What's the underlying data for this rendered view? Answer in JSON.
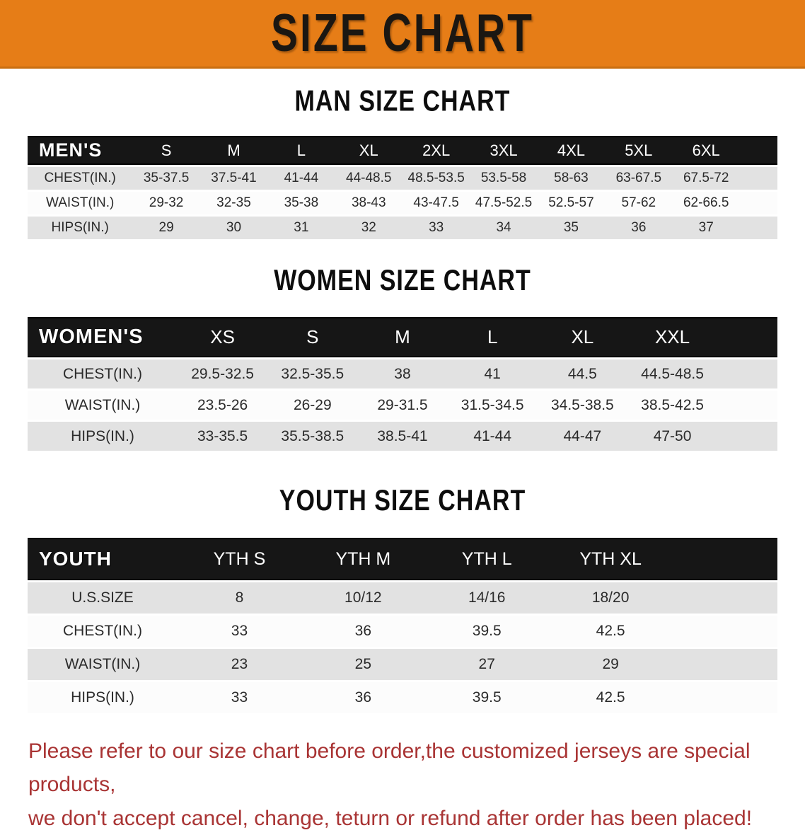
{
  "banner": {
    "title": "SIZE CHART"
  },
  "colors": {
    "banner_bg": "#E67D17",
    "banner_edge": "#C96E10",
    "table_header_bg": "#161616",
    "row_stripe": "#E2E2E2",
    "note_red": "#A93434"
  },
  "chart_data": [
    {
      "type": "table",
      "title": "MAN SIZE CHART",
      "header_label": "MEN'S",
      "columns": [
        "S",
        "M",
        "L",
        "XL",
        "2XL",
        "3XL",
        "4XL",
        "5XL",
        "6XL"
      ],
      "rows": [
        {
          "label": "CHEST(IN.)",
          "values": [
            "35-37.5",
            "37.5-41",
            "41-44",
            "44-48.5",
            "48.5-53.5",
            "53.5-58",
            "58-63",
            "63-67.5",
            "67.5-72"
          ]
        },
        {
          "label": "WAIST(IN.)",
          "values": [
            "29-32",
            "32-35",
            "35-38",
            "38-43",
            "43-47.5",
            "47.5-52.5",
            "52.5-57",
            "57-62",
            "62-66.5"
          ]
        },
        {
          "label": "HIPS(IN.)",
          "values": [
            "29",
            "30",
            "31",
            "32",
            "33",
            "34",
            "35",
            "36",
            "37"
          ]
        }
      ]
    },
    {
      "type": "table",
      "title": "WOMEN SIZE CHART",
      "header_label": "WOMEN'S",
      "columns": [
        "XS",
        "S",
        "M",
        "L",
        "XL",
        "XXL"
      ],
      "rows": [
        {
          "label": "CHEST(IN.)",
          "values": [
            "29.5-32.5",
            "32.5-35.5",
            "38",
            "41",
            "44.5",
            "44.5-48.5"
          ]
        },
        {
          "label": "WAIST(IN.)",
          "values": [
            "23.5-26",
            "26-29",
            "29-31.5",
            "31.5-34.5",
            "34.5-38.5",
            "38.5-42.5"
          ]
        },
        {
          "label": "HIPS(IN.)",
          "values": [
            "33-35.5",
            "35.5-38.5",
            "38.5-41",
            "41-44",
            "44-47",
            "47-50"
          ]
        }
      ]
    },
    {
      "type": "table",
      "title": "YOUTH SIZE CHART",
      "header_label": "YOUTH",
      "columns": [
        "YTH S",
        "YTH M",
        "YTH L",
        "YTH XL"
      ],
      "rows": [
        {
          "label": "U.S.SIZE",
          "values": [
            "8",
            "10/12",
            "14/16",
            "18/20"
          ]
        },
        {
          "label": "CHEST(IN.)",
          "values": [
            "33",
            "36",
            "39.5",
            "42.5"
          ]
        },
        {
          "label": "WAIST(IN.)",
          "values": [
            "23",
            "25",
            "27",
            "29"
          ]
        },
        {
          "label": "HIPS(IN.)",
          "values": [
            "33",
            "36",
            "39.5",
            "42.5"
          ]
        }
      ]
    }
  ],
  "note": {
    "line1": "Please refer to our size chart before order,the customized jerseys are special products,",
    "line2": "we don't accept cancel, change, teturn or refund after order has been placed!"
  }
}
